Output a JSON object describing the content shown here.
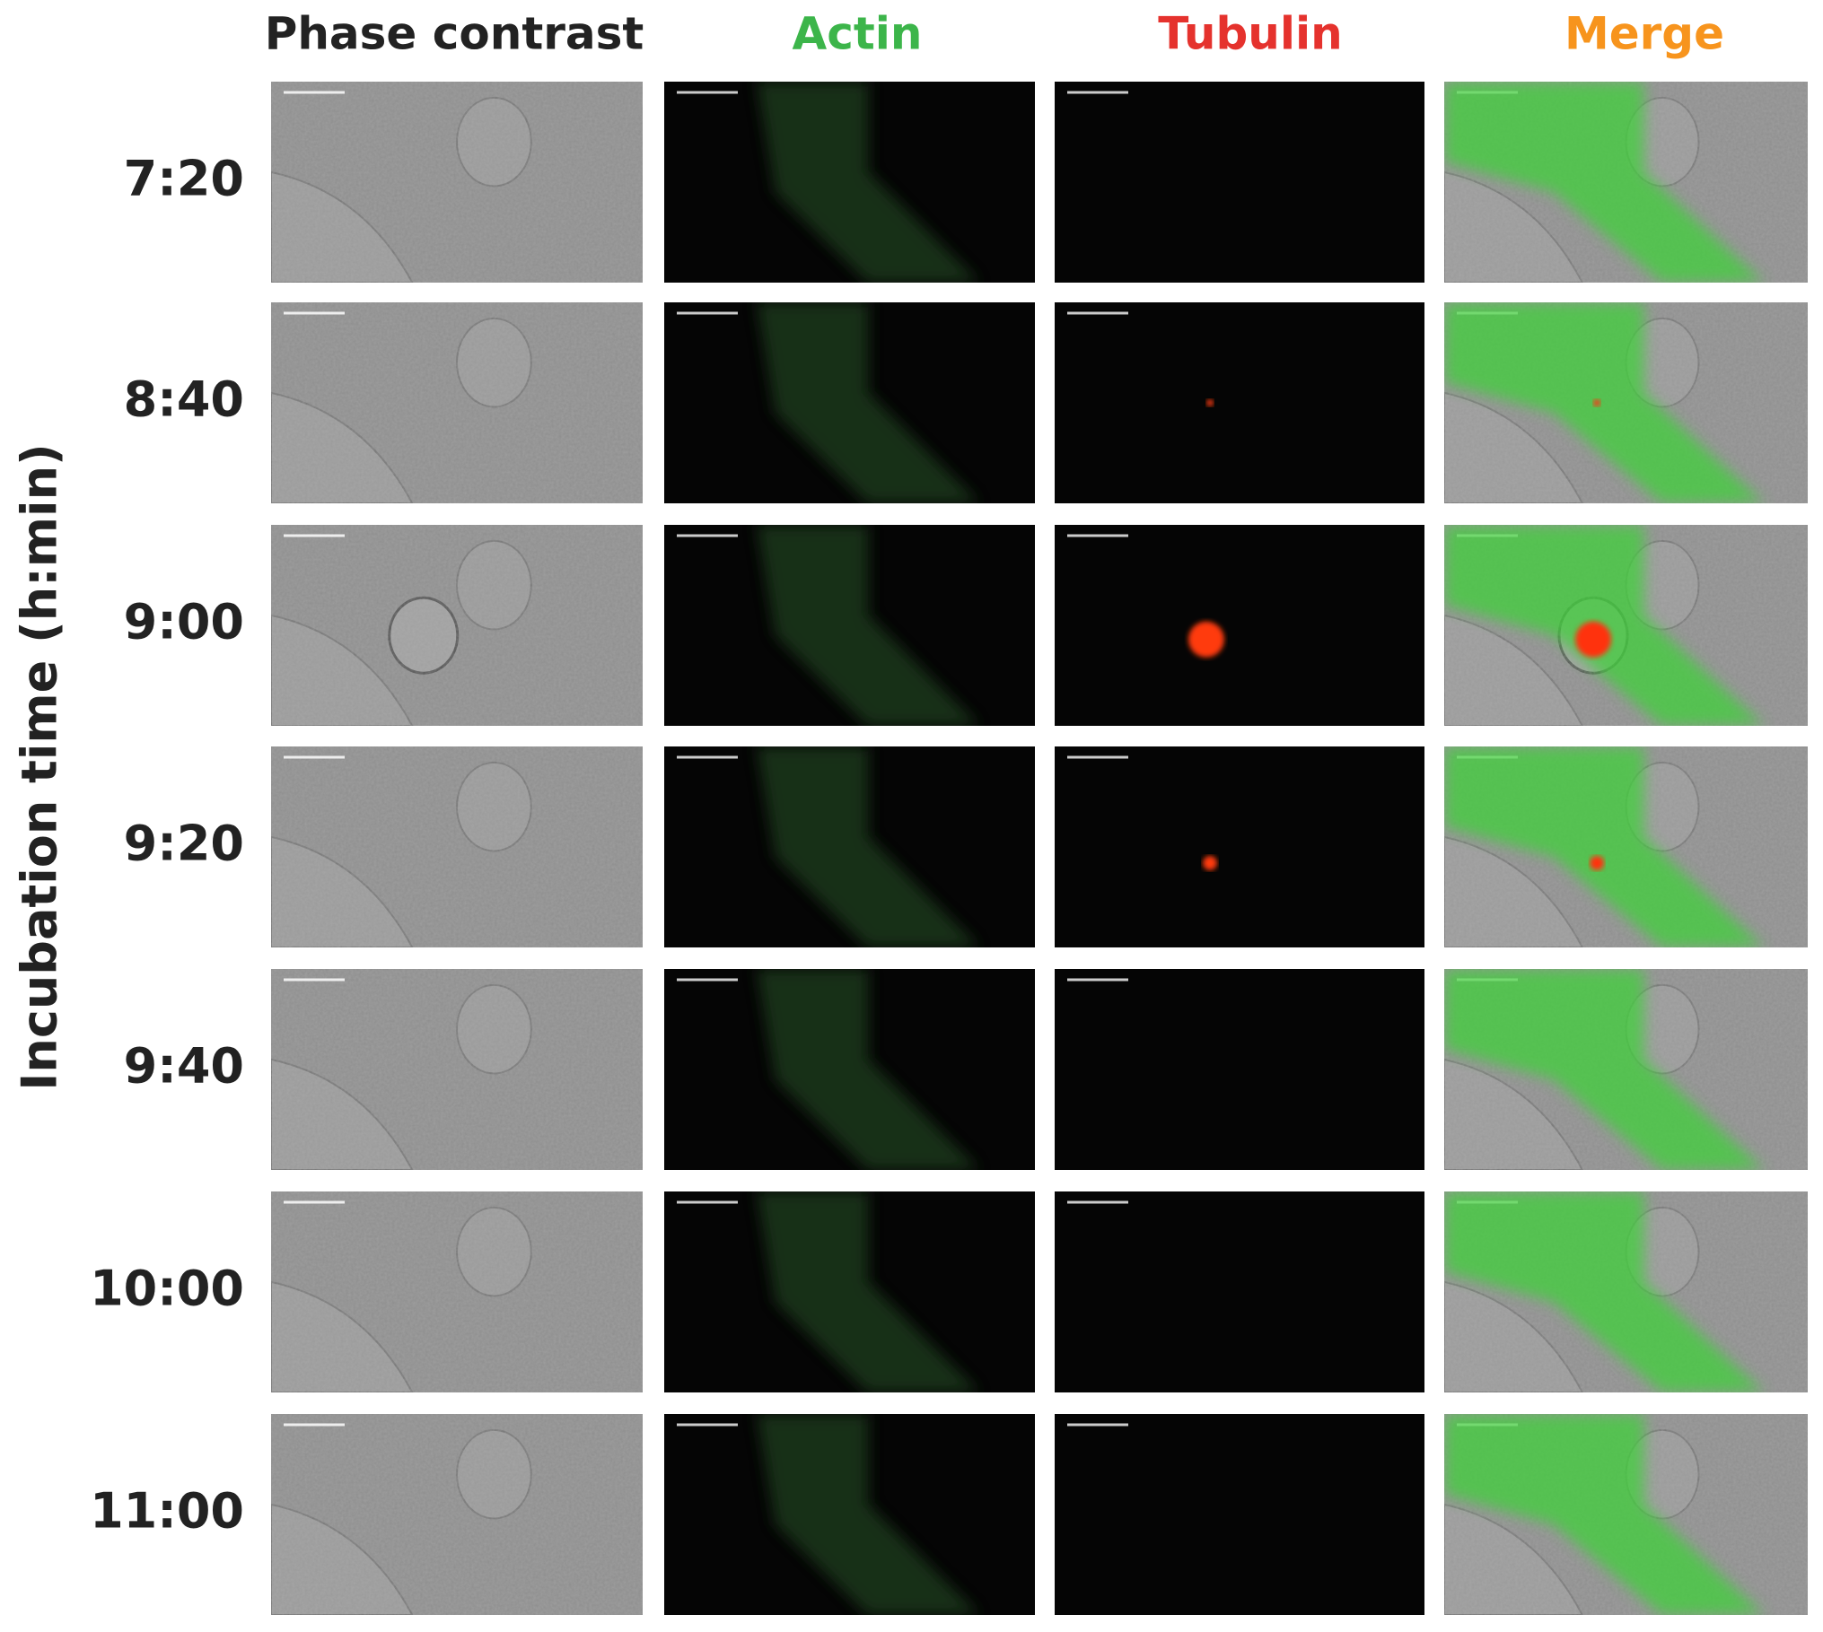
{
  "column_headers": [
    "Phase contrast",
    "Actin",
    "Tubulin",
    "Merge"
  ],
  "row_labels": [
    "7:20",
    "8:40",
    "9:00",
    "9:20",
    "9:40",
    "10:00",
    "11:00"
  ],
  "axis_label": "Incubation time (h:min)"
}
